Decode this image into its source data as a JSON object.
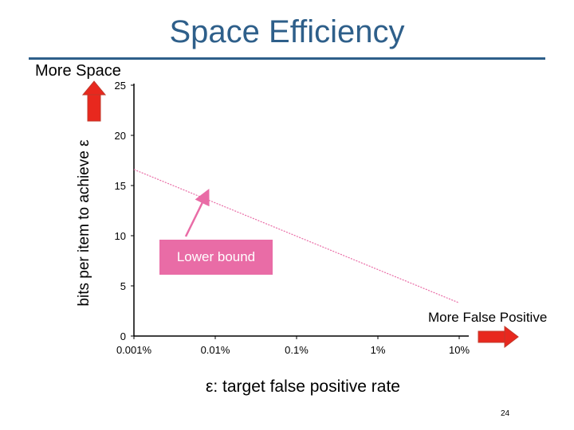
{
  "slide": {
    "title": "Space Efficiency",
    "more_space_label": "More Space",
    "more_false_positive_label": "More False Positive",
    "callout_label": "Lower bound",
    "page_number": "24"
  },
  "colors": {
    "title": "#2e5f8a",
    "arrow": "#e8281e",
    "callout": "#e96ca6",
    "line": "#e96ca6"
  },
  "chart_data": {
    "type": "line",
    "title": "",
    "xlabel": "ε: target false positive rate",
    "ylabel": "bits per item to achieve ε",
    "x_scale": "log",
    "x_ticks": [
      {
        "value": 0.001,
        "label": "0.001%"
      },
      {
        "value": 0.01,
        "label": "0.01%"
      },
      {
        "value": 0.1,
        "label": "0.1%"
      },
      {
        "value": 1,
        "label": "1%"
      },
      {
        "value": 10,
        "label": "10%"
      }
    ],
    "y_ticks": [
      0,
      5,
      10,
      15,
      20,
      25
    ],
    "ylim": [
      0,
      25
    ],
    "series": [
      {
        "values": [
          {
            "x": 0.001,
            "y": 16.6
          },
          {
            "x": 10,
            "y": 3.3
          }
        ]
      }
    ],
    "grid": false
  }
}
